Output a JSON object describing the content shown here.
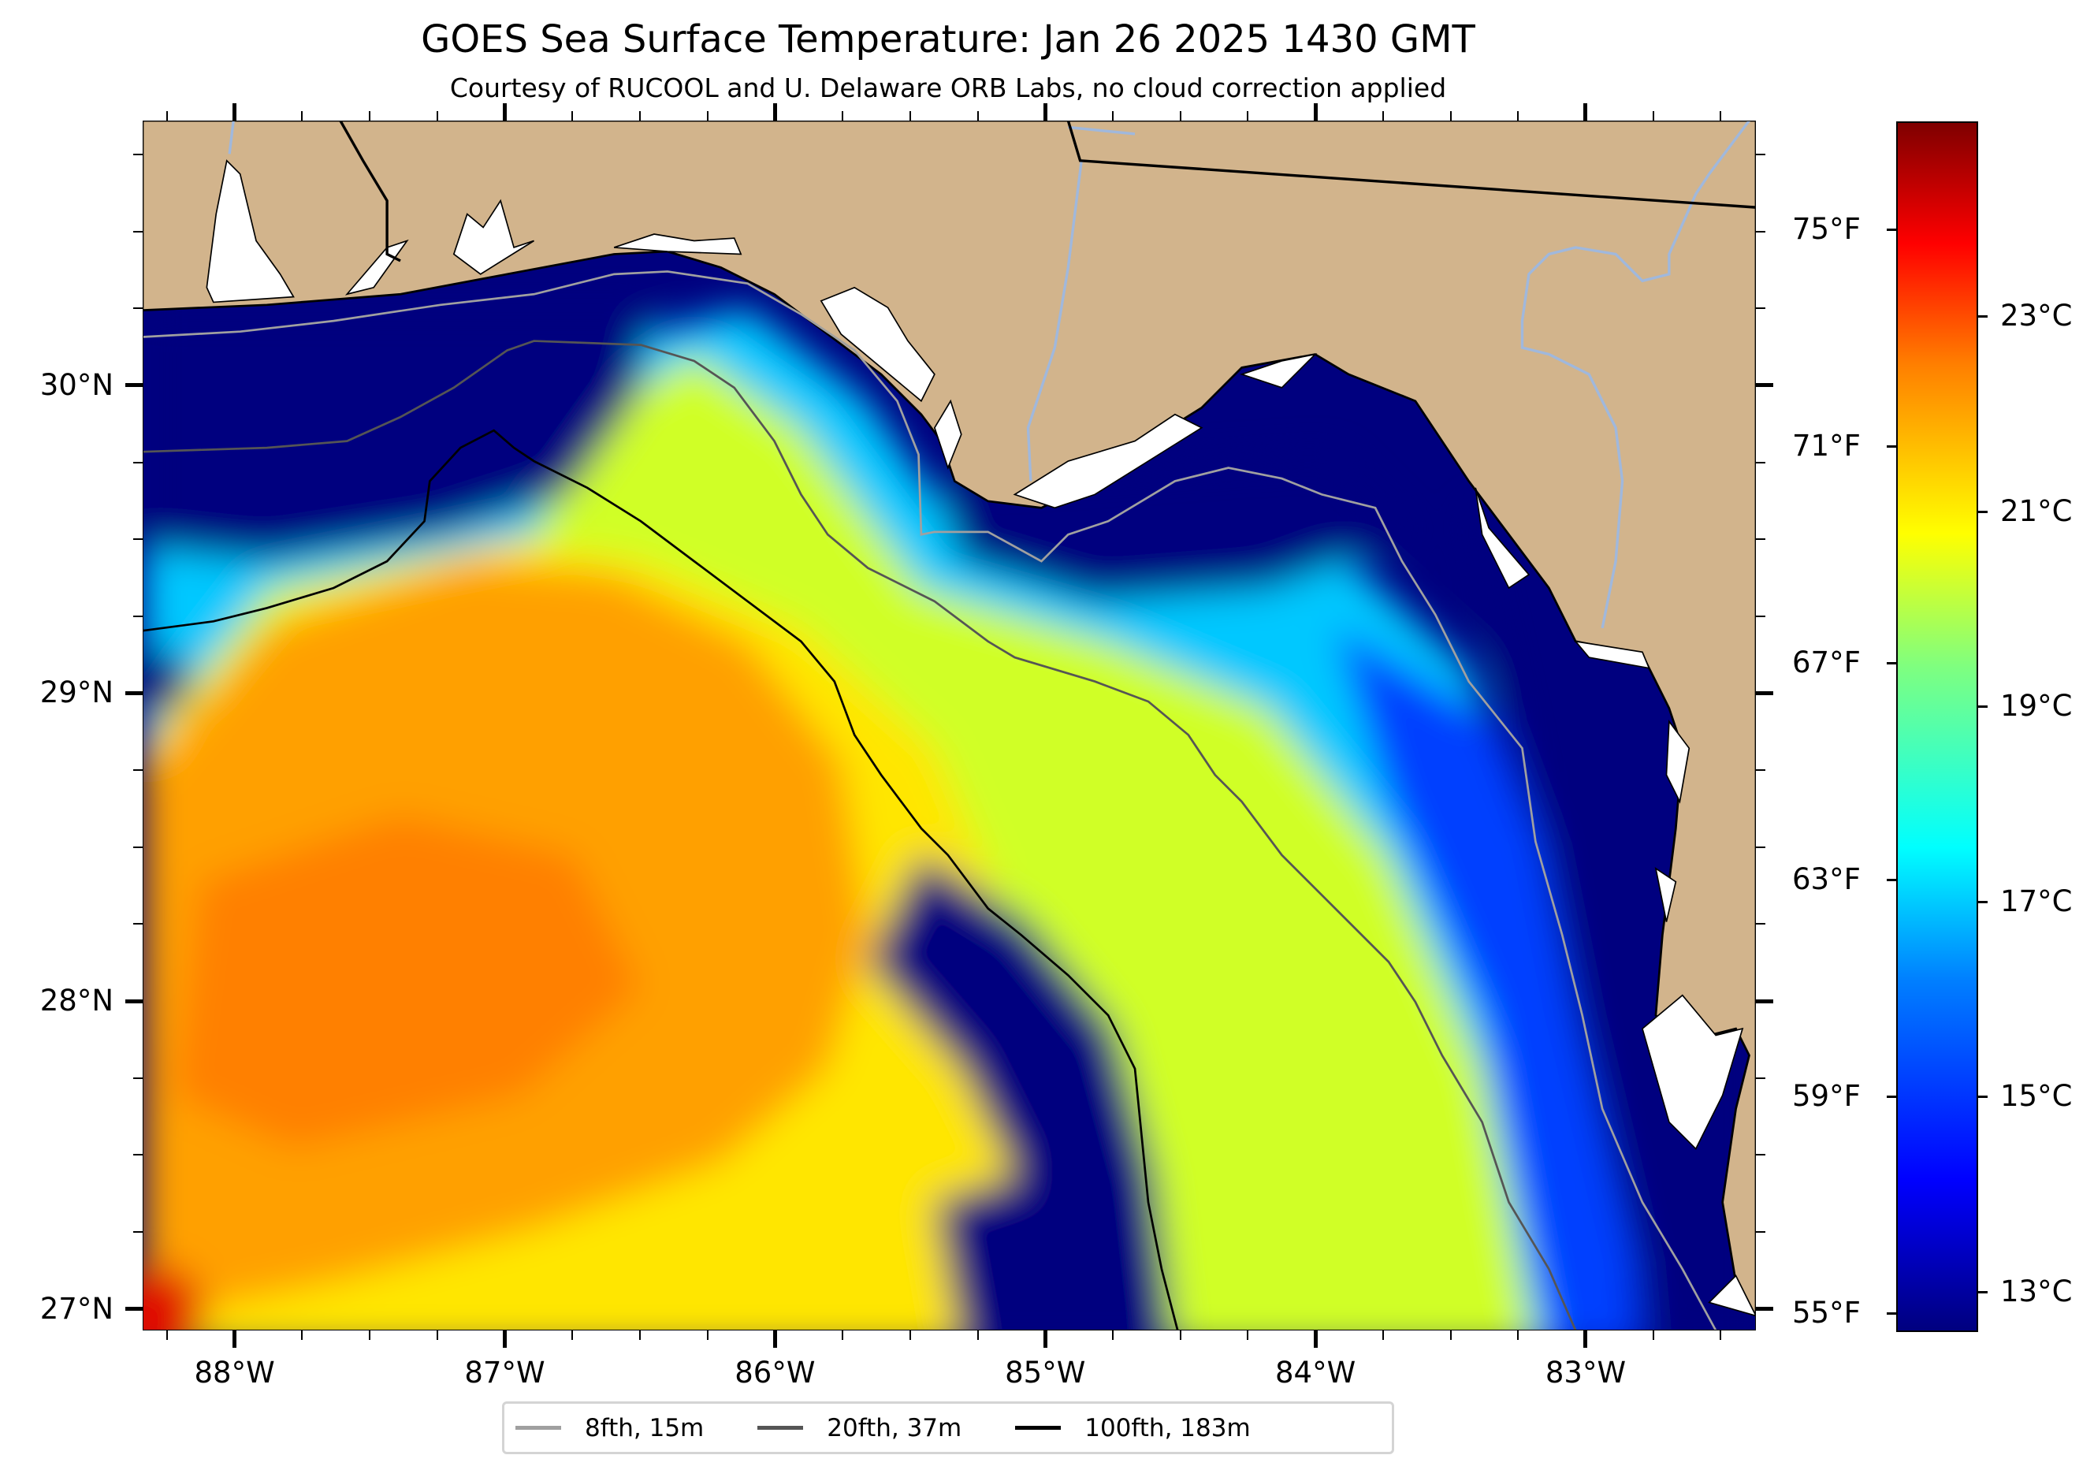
{
  "chart_data": {
    "type": "heatmap",
    "title": "GOES Sea Surface Temperature: Jan 26 2025 1430 GMT",
    "subtitle": "Courtesy of RUCOOL and U. Delaware ORB Labs, no cloud correction applied",
    "xlim": [
      -88.34,
      -82.37
    ],
    "ylim": [
      26.93,
      30.86
    ],
    "x_ticks": [
      {
        "value": -88,
        "label": "88°W"
      },
      {
        "value": -87,
        "label": "87°W"
      },
      {
        "value": -86,
        "label": "86°W"
      },
      {
        "value": -85,
        "label": "85°W"
      },
      {
        "value": -84,
        "label": "84°W"
      },
      {
        "value": -83,
        "label": "83°W"
      }
    ],
    "y_ticks": [
      {
        "value": 30,
        "label": "30°N"
      },
      {
        "value": 29,
        "label": "29°N"
      },
      {
        "value": 28,
        "label": "28°N"
      },
      {
        "value": 27,
        "label": "27°N"
      }
    ],
    "colorbar": {
      "colormap": "jet",
      "range_c": [
        12.6,
        25.0
      ],
      "ticks_c": [
        {
          "value": 23,
          "label": "23°C"
        },
        {
          "value": 21,
          "label": "21°C"
        },
        {
          "value": 19,
          "label": "19°C"
        },
        {
          "value": 17,
          "label": "17°C"
        },
        {
          "value": 15,
          "label": "15°C"
        },
        {
          "value": 13,
          "label": "13°C"
        }
      ],
      "ticks_f": [
        {
          "value": 75,
          "label": "75°F"
        },
        {
          "value": 71,
          "label": "71°F"
        },
        {
          "value": 67,
          "label": "67°F"
        },
        {
          "value": 63,
          "label": "63°F"
        },
        {
          "value": 59,
          "label": "59°F"
        },
        {
          "value": 55,
          "label": "55°F"
        }
      ]
    },
    "legend": {
      "placement": "bottom-center",
      "items": [
        {
          "label": "8fth, 15m",
          "color": "#a0a0a0"
        },
        {
          "label": "20fth, 37m",
          "color": "#555555"
        },
        {
          "label": "100fth, 183m",
          "color": "#000000"
        }
      ]
    },
    "colors": {
      "land": "#d2b48c",
      "cloud_mask": "#ffffff",
      "rivers": "#a0b8dc"
    }
  }
}
